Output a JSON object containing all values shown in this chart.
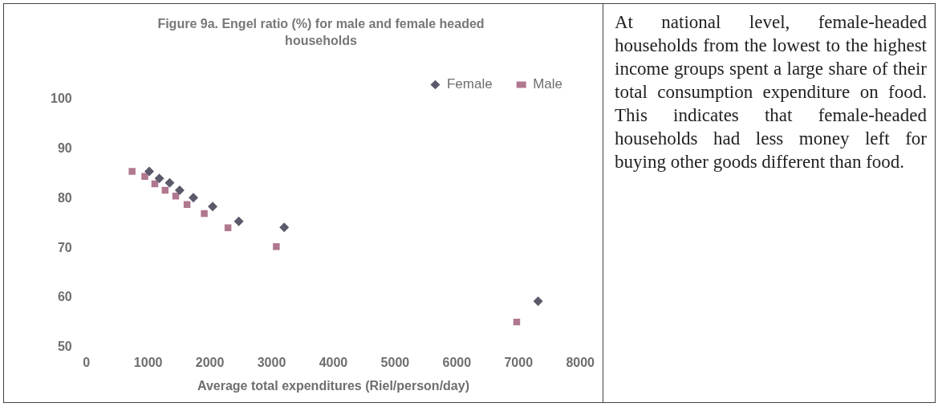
{
  "chart_data": {
    "type": "scatter",
    "title": "Figure 9a. Engel ratio (%) for male and female headed households",
    "xlabel": "Average total expenditures (Riel/person/day)",
    "xlim": [
      0,
      8000
    ],
    "xticks": [
      0,
      1000,
      2000,
      3000,
      4000,
      5000,
      6000,
      7000,
      8000
    ],
    "ylim": [
      50,
      100
    ],
    "yticks": [
      50,
      60,
      70,
      80,
      90,
      100
    ],
    "grid": false,
    "legend": "top right",
    "series": [
      {
        "name": "Female",
        "color": "#5a5a6a",
        "marker": "diamond",
        "x": [
          1018,
          1181,
          1348,
          1511,
          1733,
          2045,
          2469,
          3204,
          7317
        ],
        "values": [
          85.5,
          84.1,
          83.2,
          81.7,
          80.2,
          78.4,
          75.4,
          74.2,
          59.3
        ]
      },
      {
        "name": "Male",
        "color": "#b07890",
        "marker": "square",
        "x": [
          740,
          946,
          1108,
          1275,
          1447,
          1630,
          1909,
          2293,
          3076,
          6970
        ],
        "values": [
          85.5,
          84.5,
          83.0,
          81.7,
          80.5,
          78.8,
          77.0,
          74.1,
          70.3,
          55.1
        ]
      }
    ],
    "annotations": [
      "At national level, female-headed households from the lowest to the highest income groups spent a large share of their total consumption expenditure on food. This indicates that female-headed households had less money left for buying other goods different than food."
    ]
  }
}
